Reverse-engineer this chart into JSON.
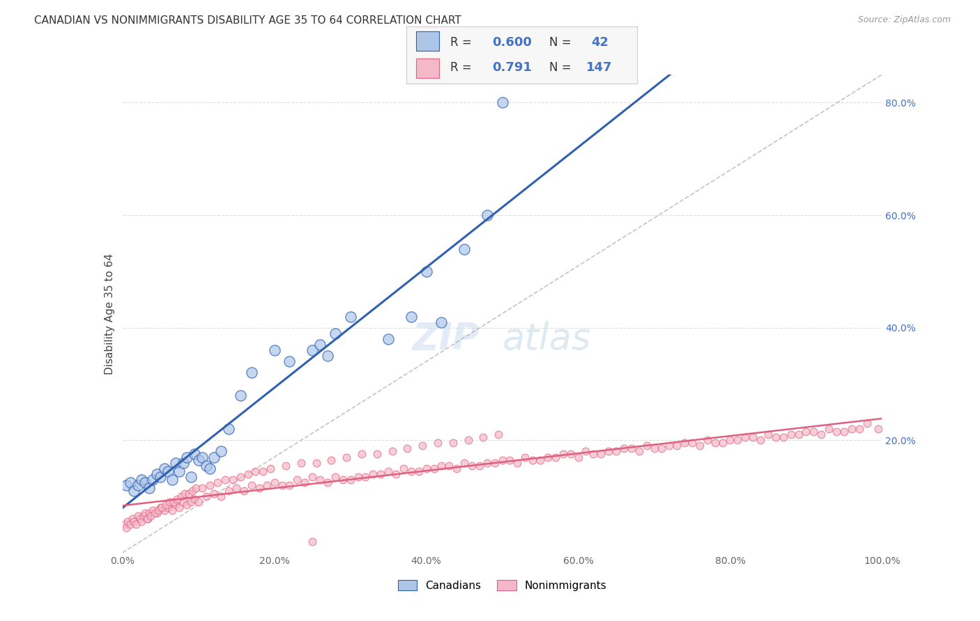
{
  "title": "CANADIAN VS NONIMMIGRANTS DISABILITY AGE 35 TO 64 CORRELATION CHART",
  "source": "Source: ZipAtlas.com",
  "ylabel_label": "Disability Age 35 to 64",
  "canadians_R": 0.6,
  "canadians_N": 42,
  "nonimmigrants_R": 0.791,
  "nonimmigrants_N": 147,
  "canadian_color": "#adc6e8",
  "nonimmigrant_color": "#f4b8c8",
  "canadian_line_color": "#3060b0",
  "nonimmigrant_line_color": "#e06080",
  "dashed_line_color": "#aaaaaa",
  "watermark_zip": "ZIP",
  "watermark_atlas": "atlas",
  "background_color": "#ffffff",
  "grid_color": "#dddddd",
  "canadians_x": [
    0.5,
    1.0,
    1.5,
    2.0,
    2.5,
    3.0,
    3.5,
    4.0,
    4.5,
    5.0,
    5.5,
    6.0,
    6.5,
    7.0,
    7.5,
    8.0,
    8.5,
    9.0,
    9.5,
    10.0,
    10.5,
    11.0,
    11.5,
    12.0,
    13.0,
    14.0,
    15.5,
    17.0,
    20.0,
    22.0,
    25.0,
    26.0,
    27.0,
    28.0,
    30.0,
    35.0,
    38.0,
    40.0,
    42.0,
    45.0,
    48.0,
    50.0
  ],
  "canadians_y": [
    12.0,
    12.5,
    11.0,
    12.0,
    13.0,
    12.5,
    11.5,
    13.0,
    14.0,
    13.5,
    15.0,
    14.5,
    13.0,
    16.0,
    14.5,
    16.0,
    17.0,
    13.5,
    17.5,
    16.5,
    17.0,
    15.5,
    15.0,
    17.0,
    18.0,
    22.0,
    28.0,
    32.0,
    36.0,
    34.0,
    36.0,
    37.0,
    35.0,
    39.0,
    42.0,
    38.0,
    42.0,
    50.0,
    41.0,
    54.0,
    60.0,
    80.0
  ],
  "nonimmigrants_x": [
    0.3,
    0.5,
    0.7,
    1.0,
    1.3,
    1.5,
    1.8,
    2.0,
    2.3,
    2.5,
    2.8,
    3.0,
    3.3,
    3.5,
    4.0,
    4.5,
    5.0,
    5.5,
    6.0,
    6.5,
    7.0,
    7.5,
    8.0,
    8.5,
    9.0,
    9.5,
    10.0,
    11.0,
    12.0,
    13.0,
    14.0,
    15.0,
    16.0,
    17.0,
    18.0,
    19.0,
    20.0,
    22.0,
    24.0,
    26.0,
    28.0,
    30.0,
    32.0,
    34.0,
    35.0,
    36.0,
    38.0,
    40.0,
    42.0,
    44.0,
    46.0,
    48.0,
    50.0,
    52.0,
    54.0,
    56.0,
    58.0,
    60.0,
    62.0,
    64.0,
    66.0,
    68.0,
    70.0,
    72.0,
    74.0,
    76.0,
    78.0,
    80.0,
    82.0,
    84.0,
    86.0,
    88.0,
    90.0,
    92.0,
    94.0,
    96.0,
    98.0,
    99.5,
    25.0,
    27.0,
    29.0,
    31.0,
    33.0,
    37.0,
    39.0,
    41.0,
    43.0,
    45.0,
    47.0,
    49.0,
    51.0,
    53.0,
    55.0,
    57.0,
    59.0,
    61.0,
    63.0,
    65.0,
    67.0,
    69.0,
    71.0,
    73.0,
    75.0,
    77.0,
    79.0,
    81.0,
    83.0,
    85.0,
    87.0,
    89.0,
    91.0,
    93.0,
    95.0,
    97.0,
    21.0,
    23.0,
    3.2,
    3.7,
    4.2,
    4.7,
    5.2,
    5.7,
    6.2,
    6.7,
    7.2,
    7.7,
    8.2,
    8.7,
    9.2,
    9.7,
    10.5,
    11.5,
    12.5,
    13.5,
    14.5,
    15.5,
    16.5,
    17.5,
    18.5,
    19.5,
    21.5,
    23.5,
    25.5,
    27.5,
    29.5,
    31.5,
    33.5,
    35.5,
    37.5,
    39.5,
    41.5,
    43.5,
    45.5,
    47.5,
    49.5
  ],
  "nonimmigrants_y": [
    5.0,
    4.5,
    5.5,
    5.0,
    6.0,
    5.5,
    5.0,
    6.5,
    6.0,
    5.5,
    6.5,
    7.0,
    6.0,
    7.0,
    7.5,
    7.0,
    8.0,
    7.5,
    8.0,
    7.5,
    8.5,
    8.0,
    9.0,
    8.5,
    9.0,
    9.5,
    9.0,
    10.0,
    10.5,
    10.0,
    11.0,
    11.5,
    11.0,
    12.0,
    11.5,
    12.0,
    12.5,
    12.0,
    12.5,
    13.0,
    13.5,
    13.0,
    13.5,
    14.0,
    14.5,
    14.0,
    14.5,
    15.0,
    15.5,
    15.0,
    15.5,
    16.0,
    16.5,
    16.0,
    16.5,
    17.0,
    17.5,
    17.0,
    17.5,
    18.0,
    18.5,
    18.0,
    18.5,
    19.0,
    19.5,
    19.0,
    19.5,
    20.0,
    20.5,
    20.0,
    20.5,
    21.0,
    21.5,
    21.0,
    21.5,
    22.0,
    23.0,
    22.0,
    13.5,
    12.5,
    13.0,
    13.5,
    14.0,
    15.0,
    14.5,
    15.0,
    15.5,
    16.0,
    15.5,
    16.0,
    16.5,
    17.0,
    16.5,
    17.0,
    17.5,
    18.0,
    17.5,
    18.0,
    18.5,
    19.0,
    18.5,
    19.0,
    19.5,
    20.0,
    19.5,
    20.0,
    20.5,
    21.0,
    20.5,
    21.0,
    21.5,
    22.0,
    21.5,
    22.0,
    12.0,
    13.0,
    6.0,
    6.5,
    7.0,
    7.5,
    8.0,
    8.5,
    9.0,
    9.0,
    9.5,
    10.0,
    10.5,
    10.5,
    11.0,
    11.5,
    11.5,
    12.0,
    12.5,
    13.0,
    13.0,
    13.5,
    14.0,
    14.5,
    14.5,
    15.0,
    15.5,
    16.0,
    16.0,
    16.5,
    17.0,
    17.5,
    17.5,
    18.0,
    18.5,
    19.0,
    19.5,
    19.5,
    20.0,
    20.5,
    21.0
  ],
  "nonimmigrant_outlier_x": [
    25.0
  ],
  "nonimmigrant_outlier_y": [
    2.0
  ],
  "xlim_min": 0,
  "xlim_max": 100,
  "ylim_min": 0,
  "ylim_max": 85,
  "ytick_positions": [
    20,
    40,
    60,
    80
  ],
  "ytick_labels": [
    "20.0%",
    "40.0%",
    "60.0%",
    "80.0%"
  ],
  "xtick_positions": [
    0,
    20,
    40,
    60,
    80,
    100
  ],
  "xtick_labels": [
    "0.0%",
    "20.0%",
    "40.0%",
    "60.0%",
    "80.0%",
    "100.0%"
  ]
}
